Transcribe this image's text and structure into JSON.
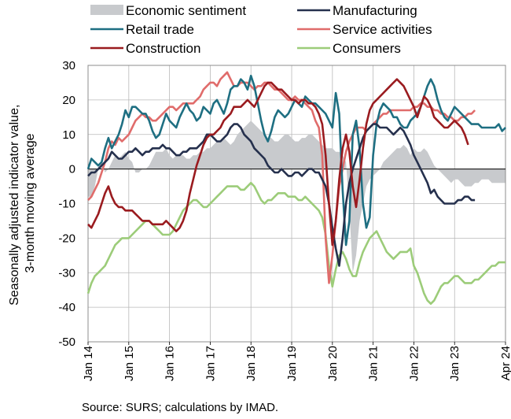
{
  "chart_data": {
    "type": "line",
    "ylabel": [
      "Seasonally adjusted indicator value,",
      "3-month moving average"
    ],
    "ylim": [
      -50,
      30
    ],
    "yticks": [
      30,
      20,
      10,
      0,
      -10,
      -20,
      -30,
      -40,
      -50
    ],
    "xticks": [
      "Jan 14",
      "Jan 15",
      "Jan 16",
      "Jan 17",
      "Jan 18",
      "Jan 19",
      "Jan 20",
      "Jan 21",
      "Jan 22",
      "Jan 23",
      "Apr 24"
    ],
    "grid": true,
    "legend_position": "top",
    "x_start": "2014-01",
    "x_end": "2024-04",
    "series": [
      {
        "name": "Economic sentiment",
        "style": "area",
        "color": "#c8cacd",
        "values": [
          -8,
          -8,
          -5,
          0,
          2,
          -1,
          0,
          2,
          4,
          3,
          4,
          5,
          3,
          2,
          -1,
          -1,
          0,
          0,
          1,
          3,
          5,
          5,
          5,
          6,
          4,
          3,
          4,
          4,
          4,
          3,
          3,
          4,
          4,
          5,
          5,
          6,
          6,
          7,
          8,
          8,
          9,
          8,
          7,
          8,
          10,
          11,
          12,
          13,
          14,
          13,
          12,
          11,
          10,
          9,
          9,
          8,
          8,
          9,
          10,
          10,
          9,
          8,
          8,
          9,
          9,
          10,
          10,
          9,
          8,
          7,
          6,
          6,
          6,
          5,
          5,
          4,
          2,
          -12,
          -30,
          -25,
          -15,
          -10,
          -5,
          -3,
          -2,
          -1,
          0,
          2,
          3,
          4,
          5,
          6,
          6,
          7,
          6,
          4,
          6,
          5,
          5,
          6,
          5,
          3,
          1,
          0,
          -1,
          -2,
          -3,
          -4,
          -3,
          -3,
          -4,
          -5,
          -5,
          -5,
          -4,
          -4,
          -3,
          -3,
          -3,
          -4,
          -4,
          -4,
          -4,
          -4
        ]
      },
      {
        "name": "Manufacturing",
        "style": "line",
        "color": "#25304d",
        "values": [
          -2,
          -1,
          -1,
          0,
          1,
          2,
          3,
          5,
          4,
          3,
          3,
          4,
          5,
          5,
          6,
          5,
          4,
          5,
          5,
          6,
          6,
          6,
          7,
          6,
          6,
          5,
          4,
          4,
          5,
          5,
          6,
          6,
          6,
          7,
          8,
          10,
          10,
          9,
          8,
          8,
          9,
          10,
          12,
          13,
          13,
          12,
          10,
          9,
          8,
          6,
          5,
          4,
          3,
          1,
          0,
          -1,
          -1,
          0,
          -1,
          -2,
          -2,
          -1,
          -1,
          -2,
          -1,
          0,
          0,
          -1,
          -1,
          -3,
          -5,
          -10,
          -17,
          -23,
          -28,
          -20,
          -10,
          -4,
          0,
          3,
          6,
          9,
          11,
          12,
          13,
          13,
          12,
          12,
          12,
          11,
          10,
          11,
          12,
          11,
          9,
          7,
          4,
          2,
          0,
          -2,
          -4,
          -7,
          -6,
          -8,
          -9,
          -10,
          -10,
          -10,
          -10,
          -9,
          -9,
          -8,
          -8,
          -9,
          -9
        ]
      },
      {
        "name": "Retail trade",
        "style": "line",
        "color": "#1e6f82",
        "values": [
          0,
          3,
          2,
          1,
          2,
          6,
          9,
          6,
          8,
          10,
          13,
          17,
          15,
          18,
          18,
          17,
          16,
          16,
          14,
          11,
          9,
          10,
          13,
          16,
          14,
          13,
          12,
          15,
          17,
          19,
          17,
          16,
          14,
          15,
          18,
          17,
          16,
          19,
          20,
          18,
          16,
          19,
          23,
          24,
          24,
          26,
          25,
          23,
          27,
          24,
          19,
          14,
          10,
          8,
          11,
          15,
          17,
          16,
          15,
          16,
          18,
          20,
          19,
          18,
          21,
          20,
          19,
          19,
          18,
          17,
          16,
          14,
          12,
          22,
          16,
          -6,
          -22,
          -15,
          10,
          14,
          6,
          -10,
          -17,
          -14,
          4,
          13,
          17,
          19,
          18,
          17,
          15,
          15,
          13,
          12,
          12,
          14,
          15,
          16,
          18,
          21,
          24,
          26,
          24,
          20,
          17,
          15,
          14,
          16,
          18,
          17,
          16,
          15,
          14,
          13,
          13,
          13,
          12,
          12,
          12,
          12,
          12,
          13,
          11,
          12
        ]
      },
      {
        "name": "Service activities",
        "style": "line",
        "color": "#e06c6b",
        "values": [
          -9,
          -8,
          -6,
          -4,
          -1,
          2,
          6,
          8,
          7,
          9,
          8,
          9,
          10,
          12,
          14,
          15,
          16,
          15,
          15,
          14,
          14,
          15,
          16,
          17,
          18,
          18,
          17,
          18,
          19,
          19,
          19,
          19,
          20,
          21,
          23,
          24,
          25,
          25,
          24,
          26,
          27,
          28,
          26,
          24,
          24,
          25,
          25,
          25,
          24,
          23,
          24,
          24,
          25,
          25,
          24,
          23,
          23,
          22,
          21,
          20,
          20,
          21,
          20,
          20,
          19,
          18,
          17,
          14,
          12,
          4,
          -20,
          -33,
          -25,
          -15,
          -5,
          0,
          5,
          8,
          10,
          12,
          12,
          12,
          11,
          12,
          13,
          14,
          15,
          16,
          16,
          17,
          17,
          17,
          17,
          17,
          17,
          17,
          18,
          18,
          19,
          19,
          18,
          18,
          17,
          17,
          16,
          16,
          15,
          15,
          14,
          14,
          15,
          15,
          16,
          16,
          17
        ]
      },
      {
        "name": "Construction",
        "style": "line",
        "color": "#9a1b1f",
        "values": [
          -16,
          -17,
          -15,
          -13,
          -10,
          -7,
          -5,
          -8,
          -10,
          -11,
          -11,
          -12,
          -12,
          -12,
          -13,
          -14,
          -15,
          -15,
          -15,
          -16,
          -16,
          -16,
          -16,
          -15,
          -16,
          -17,
          -18,
          -17,
          -15,
          -12,
          -7,
          -3,
          1,
          4,
          7,
          9,
          10,
          10,
          11,
          12,
          14,
          15,
          16,
          18,
          18,
          18,
          19,
          20,
          19,
          18,
          20,
          22,
          24,
          25,
          25,
          24,
          23,
          23,
          22,
          21,
          20,
          20,
          19,
          20,
          20,
          19,
          19,
          18,
          16,
          13,
          4,
          -10,
          -22,
          -15,
          -3,
          6,
          10,
          5,
          -5,
          -11,
          -3,
          6,
          13,
          17,
          19,
          20,
          21,
          22,
          23,
          24,
          25,
          26,
          25,
          24,
          22,
          20,
          18,
          15,
          18,
          21,
          20,
          18,
          15,
          14,
          13,
          12,
          12,
          13,
          14,
          13,
          12,
          10,
          7
        ]
      },
      {
        "name": "Consumers",
        "style": "line",
        "color": "#9ccc79",
        "values": [
          -36,
          -33,
          -31,
          -30,
          -29,
          -28,
          -26,
          -24,
          -22,
          -21,
          -20,
          -20,
          -20,
          -19,
          -18,
          -17,
          -16,
          -15,
          -15,
          -16,
          -17,
          -18,
          -19,
          -19,
          -19,
          -18,
          -16,
          -14,
          -12,
          -11,
          -10,
          -9,
          -9,
          -10,
          -11,
          -11,
          -10,
          -9,
          -8,
          -7,
          -6,
          -5,
          -5,
          -5,
          -5,
          -6,
          -6,
          -5,
          -4,
          -5,
          -7,
          -9,
          -10,
          -9,
          -9,
          -8,
          -7,
          -7,
          -7,
          -8,
          -8,
          -8,
          -9,
          -9,
          -8,
          -9,
          -10,
          -11,
          -12,
          -14,
          -19,
          -28,
          -34,
          -29,
          -25,
          -24,
          -26,
          -29,
          -31,
          -31,
          -27,
          -24,
          -22,
          -20,
          -19,
          -18,
          -20,
          -22,
          -24,
          -25,
          -26,
          -25,
          -24,
          -24,
          -24,
          -23,
          -28,
          -30,
          -33,
          -36,
          -38,
          -39,
          -38,
          -36,
          -34,
          -33,
          -33,
          -32,
          -31,
          -31,
          -32,
          -33,
          -33,
          -33,
          -32,
          -32,
          -31,
          -30,
          -29,
          -28,
          -28,
          -27,
          -27,
          -27
        ]
      }
    ]
  },
  "source": "Source: SURS; calculations by IMAD."
}
